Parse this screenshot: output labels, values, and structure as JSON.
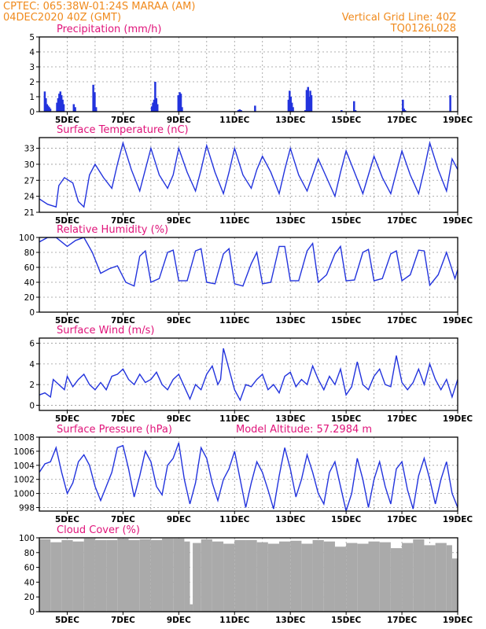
{
  "header": {
    "left_line1": "CPTEC:   065:38W-01:24S   MARAA (AM)",
    "left_line2": "04DEC2020 40Z (GMT)",
    "right_line1": "Vertical Grid Line: 40Z",
    "right_line2": "TQ0126L028"
  },
  "colors": {
    "header": "#f08a1c",
    "title": "#e0147a",
    "line": "#2233dd",
    "cloud": "#aaaaaa"
  },
  "x_axis": {
    "labels": [
      "5DEC",
      "7DEC",
      "9DEC",
      "11DEC",
      "13DEC",
      "15DEC",
      "17DEC",
      "19DEC"
    ],
    "label_days": [
      5,
      7,
      9,
      11,
      13,
      15,
      17,
      19
    ],
    "grid_days": [
      6,
      8,
      10,
      12,
      14,
      16,
      18
    ],
    "start_day": 4.0,
    "end_day": 19.0
  },
  "chart_data": [
    {
      "type": "bar",
      "title": "Precipitation (mm/h)",
      "ylim": [
        0,
        5
      ],
      "yticks": [
        0,
        1,
        2,
        3,
        4,
        5
      ],
      "x": [
        4.16,
        4.2,
        4.24,
        4.28,
        4.32,
        4.36,
        4.6,
        4.64,
        4.68,
        4.72,
        4.76,
        4.8,
        4.84,
        5.2,
        5.25,
        5.9,
        5.95,
        6.0,
        8.0,
        8.04,
        8.08,
        8.12,
        8.16,
        8.2,
        8.95,
        9.0,
        9.04,
        9.08,
        11.1,
        11.15,
        11.2,
        11.7,
        12.9,
        12.94,
        12.98,
        13.02,
        13.06,
        13.5,
        13.55,
        13.6,
        13.64,
        13.68,
        13.72,
        14.8,
        15.25,
        15.3,
        17.0,
        17.04,
        17.08,
        18.7
      ],
      "values": [
        1.35,
        0.9,
        0.5,
        0.4,
        0.3,
        0.2,
        0.6,
        0.9,
        1.2,
        1.35,
        1.1,
        0.8,
        0.5,
        0.5,
        0.3,
        1.8,
        1.3,
        0.3,
        0.35,
        0.6,
        0.8,
        2.0,
        0.9,
        0.5,
        1.1,
        1.3,
        1.2,
        0.3,
        0.1,
        0.15,
        0.1,
        0.4,
        0.8,
        1.4,
        1.0,
        0.6,
        0.3,
        0.1,
        1.45,
        1.65,
        1.0,
        1.4,
        1.1,
        0.1,
        0.7,
        0.1,
        0.8,
        0.2,
        0.1,
        1.1
      ]
    },
    {
      "type": "line",
      "title": "Surface Temperature (nC)",
      "ylim": [
        21,
        35
      ],
      "yticks": [
        21,
        24,
        27,
        30,
        33
      ],
      "x": [
        4.0,
        4.3,
        4.6,
        4.7,
        4.9,
        5.2,
        5.4,
        5.6,
        5.8,
        6.0,
        6.3,
        6.6,
        6.8,
        7.0,
        7.3,
        7.6,
        7.8,
        8.0,
        8.3,
        8.6,
        8.8,
        9.0,
        9.3,
        9.6,
        9.8,
        10.0,
        10.3,
        10.6,
        10.8,
        11.0,
        11.3,
        11.6,
        11.8,
        12.0,
        12.3,
        12.6,
        12.8,
        13.0,
        13.3,
        13.6,
        13.8,
        14.0,
        14.3,
        14.6,
        14.8,
        15.0,
        15.3,
        15.6,
        15.8,
        16.0,
        16.3,
        16.6,
        16.8,
        17.0,
        17.3,
        17.6,
        17.8,
        18.0,
        18.3,
        18.6,
        18.8,
        19.0
      ],
      "values": [
        23.5,
        22.5,
        22.0,
        26.0,
        27.5,
        26.5,
        23.0,
        22.0,
        28.0,
        30.0,
        27.5,
        25.5,
        30.0,
        34.0,
        29.0,
        25.0,
        29.0,
        33.0,
        28.0,
        25.5,
        28.0,
        33.0,
        28.5,
        25.0,
        29.0,
        33.5,
        28.5,
        24.5,
        28.5,
        33.0,
        28.0,
        25.5,
        29.0,
        31.5,
        28.5,
        24.5,
        29.0,
        33.0,
        28.0,
        25.0,
        28.0,
        31.0,
        27.5,
        24.0,
        28.5,
        32.5,
        28.5,
        24.5,
        28.0,
        31.5,
        27.5,
        24.5,
        28.5,
        32.5,
        28.0,
        24.5,
        29.0,
        34.0,
        29.0,
        25.0,
        31.0,
        29.0
      ]
    },
    {
      "type": "line",
      "title": "Relative Humidity (%)",
      "ylim": [
        0,
        100
      ],
      "yticks": [
        0,
        20,
        40,
        60,
        80,
        100
      ],
      "x": [
        4.0,
        4.3,
        4.6,
        4.8,
        5.0,
        5.3,
        5.6,
        5.9,
        6.2,
        6.5,
        6.8,
        7.1,
        7.4,
        7.6,
        7.8,
        8.0,
        8.3,
        8.6,
        8.8,
        9.0,
        9.3,
        9.6,
        9.8,
        10.0,
        10.3,
        10.6,
        10.8,
        11.0,
        11.3,
        11.6,
        11.8,
        12.0,
        12.3,
        12.6,
        12.8,
        13.0,
        13.3,
        13.6,
        13.8,
        14.0,
        14.3,
        14.6,
        14.8,
        15.0,
        15.3,
        15.6,
        15.8,
        16.0,
        16.3,
        16.6,
        16.8,
        17.0,
        17.3,
        17.6,
        17.8,
        18.0,
        18.3,
        18.6,
        18.9,
        19.0
      ],
      "values": [
        94,
        100,
        100,
        94,
        88,
        96,
        100,
        80,
        52,
        58,
        62,
        40,
        35,
        75,
        82,
        40,
        45,
        80,
        83,
        42,
        42,
        82,
        85,
        40,
        38,
        78,
        85,
        38,
        35,
        65,
        80,
        38,
        40,
        88,
        88,
        42,
        42,
        82,
        92,
        40,
        50,
        78,
        88,
        42,
        43,
        80,
        84,
        42,
        45,
        78,
        82,
        42,
        50,
        83,
        82,
        36,
        50,
        80,
        45,
        57
      ]
    },
    {
      "type": "line",
      "title": "Surface Wind (m/s)",
      "ylim": [
        -0.5,
        6.5
      ],
      "yticks": [
        0,
        2,
        4,
        6
      ],
      "x": [
        4.0,
        4.2,
        4.4,
        4.5,
        4.7,
        4.9,
        5.0,
        5.2,
        5.4,
        5.6,
        5.8,
        6.0,
        6.2,
        6.4,
        6.6,
        6.8,
        7.0,
        7.2,
        7.4,
        7.6,
        7.8,
        8.0,
        8.2,
        8.4,
        8.6,
        8.8,
        9.0,
        9.2,
        9.4,
        9.6,
        9.8,
        10.0,
        10.2,
        10.4,
        10.5,
        10.6,
        10.8,
        11.0,
        11.2,
        11.4,
        11.6,
        11.8,
        12.0,
        12.2,
        12.4,
        12.6,
        12.8,
        13.0,
        13.2,
        13.4,
        13.6,
        13.8,
        14.0,
        14.2,
        14.4,
        14.6,
        14.8,
        15.0,
        15.2,
        15.4,
        15.6,
        15.8,
        16.0,
        16.2,
        16.4,
        16.6,
        16.8,
        17.0,
        17.2,
        17.4,
        17.6,
        17.8,
        18.0,
        18.2,
        18.4,
        18.6,
        18.8,
        19.0
      ],
      "values": [
        1.0,
        1.2,
        0.8,
        2.5,
        2.0,
        1.5,
        2.8,
        1.8,
        2.5,
        3.0,
        2.0,
        1.5,
        2.2,
        1.5,
        2.8,
        3.0,
        3.5,
        2.5,
        2.0,
        3.0,
        2.2,
        2.5,
        3.2,
        2.0,
        1.5,
        2.5,
        3.0,
        1.8,
        0.6,
        2.0,
        1.5,
        3.0,
        3.8,
        2.0,
        2.5,
        5.5,
        3.5,
        1.5,
        0.5,
        2.0,
        1.8,
        2.5,
        3.0,
        1.5,
        2.0,
        1.2,
        2.8,
        3.2,
        1.8,
        2.5,
        2.0,
        3.8,
        2.5,
        1.5,
        2.8,
        2.0,
        3.5,
        1.0,
        1.8,
        4.2,
        2.0,
        1.5,
        2.8,
        3.5,
        2.0,
        1.8,
        4.8,
        2.2,
        1.5,
        2.2,
        3.5,
        2.0,
        4.0,
        2.5,
        1.5,
        2.5,
        0.8,
        2.5
      ]
    },
    {
      "type": "line",
      "title": "Surface Pressure (hPa)",
      "subtitle": "Model Altitude: 57.2984 m",
      "ylim": [
        997.5,
        1008
      ],
      "yticks": [
        998,
        1000,
        1002,
        1004,
        1006,
        1008
      ],
      "x": [
        4.0,
        4.2,
        4.4,
        4.6,
        4.8,
        5.0,
        5.2,
        5.4,
        5.6,
        5.8,
        6.0,
        6.2,
        6.4,
        6.6,
        6.8,
        7.0,
        7.2,
        7.4,
        7.6,
        7.8,
        8.0,
        8.2,
        8.4,
        8.6,
        8.8,
        9.0,
        9.2,
        9.4,
        9.6,
        9.8,
        10.0,
        10.2,
        10.4,
        10.6,
        10.8,
        11.0,
        11.2,
        11.4,
        11.6,
        11.8,
        12.0,
        12.2,
        12.4,
        12.6,
        12.8,
        13.0,
        13.2,
        13.4,
        13.6,
        13.8,
        14.0,
        14.2,
        14.4,
        14.6,
        14.8,
        15.0,
        15.2,
        15.4,
        15.6,
        15.8,
        16.0,
        16.2,
        16.4,
        16.6,
        16.8,
        17.0,
        17.2,
        17.4,
        17.6,
        17.8,
        18.0,
        18.2,
        18.4,
        18.6,
        18.8,
        19.0
      ],
      "values": [
        1003.0,
        1004.2,
        1004.5,
        1006.5,
        1003.0,
        1000.0,
        1001.5,
        1004.5,
        1005.5,
        1004.0,
        1001.0,
        999.0,
        1001.0,
        1003.0,
        1006.5,
        1006.8,
        1003.5,
        999.5,
        1002.5,
        1006.0,
        1004.5,
        1001.0,
        999.8,
        1004.0,
        1005.0,
        1007.2,
        1002.0,
        998.5,
        1001.5,
        1006.5,
        1005.0,
        1001.5,
        999.0,
        1002.0,
        1003.5,
        1006.0,
        1002.0,
        998.0,
        1001.5,
        1004.5,
        1003.0,
        1000.5,
        997.8,
        1002.5,
        1006.5,
        1003.5,
        999.5,
        1002.0,
        1005.5,
        1003.0,
        1000.0,
        998.5,
        1003.0,
        1004.5,
        1001.0,
        997.5,
        1000.0,
        1005.0,
        1002.0,
        998.0,
        1002.0,
        1004.5,
        1001.0,
        998.5,
        1003.5,
        1004.5,
        1000.5,
        997.8,
        1002.5,
        1005.0,
        1002.0,
        998.5,
        1002.0,
        1004.5,
        1000.0,
        998.0
      ]
    },
    {
      "type": "bar",
      "title": "Cloud Cover (%)",
      "ylim": [
        0,
        100
      ],
      "yticks": [
        0,
        20,
        40,
        60,
        80,
        100
      ],
      "x": [
        4.0,
        4.4,
        4.8,
        5.2,
        5.6,
        6.0,
        6.4,
        6.8,
        7.2,
        7.6,
        8.0,
        8.4,
        8.8,
        9.2,
        9.4,
        9.5,
        9.8,
        10.2,
        10.6,
        11.0,
        11.4,
        11.8,
        12.2,
        12.6,
        13.0,
        13.4,
        13.8,
        14.2,
        14.6,
        15.0,
        15.4,
        15.8,
        16.2,
        16.6,
        17.0,
        17.4,
        17.8,
        18.2,
        18.6,
        18.8
      ],
      "values": [
        98,
        94,
        97,
        95,
        99,
        97,
        97,
        99,
        97,
        98,
        97,
        99,
        99,
        95,
        10,
        93,
        98,
        95,
        92,
        97,
        97,
        94,
        92,
        95,
        96,
        92,
        97,
        95,
        88,
        93,
        92,
        95,
        94,
        86,
        93,
        98,
        90,
        93,
        90,
        72
      ]
    }
  ]
}
